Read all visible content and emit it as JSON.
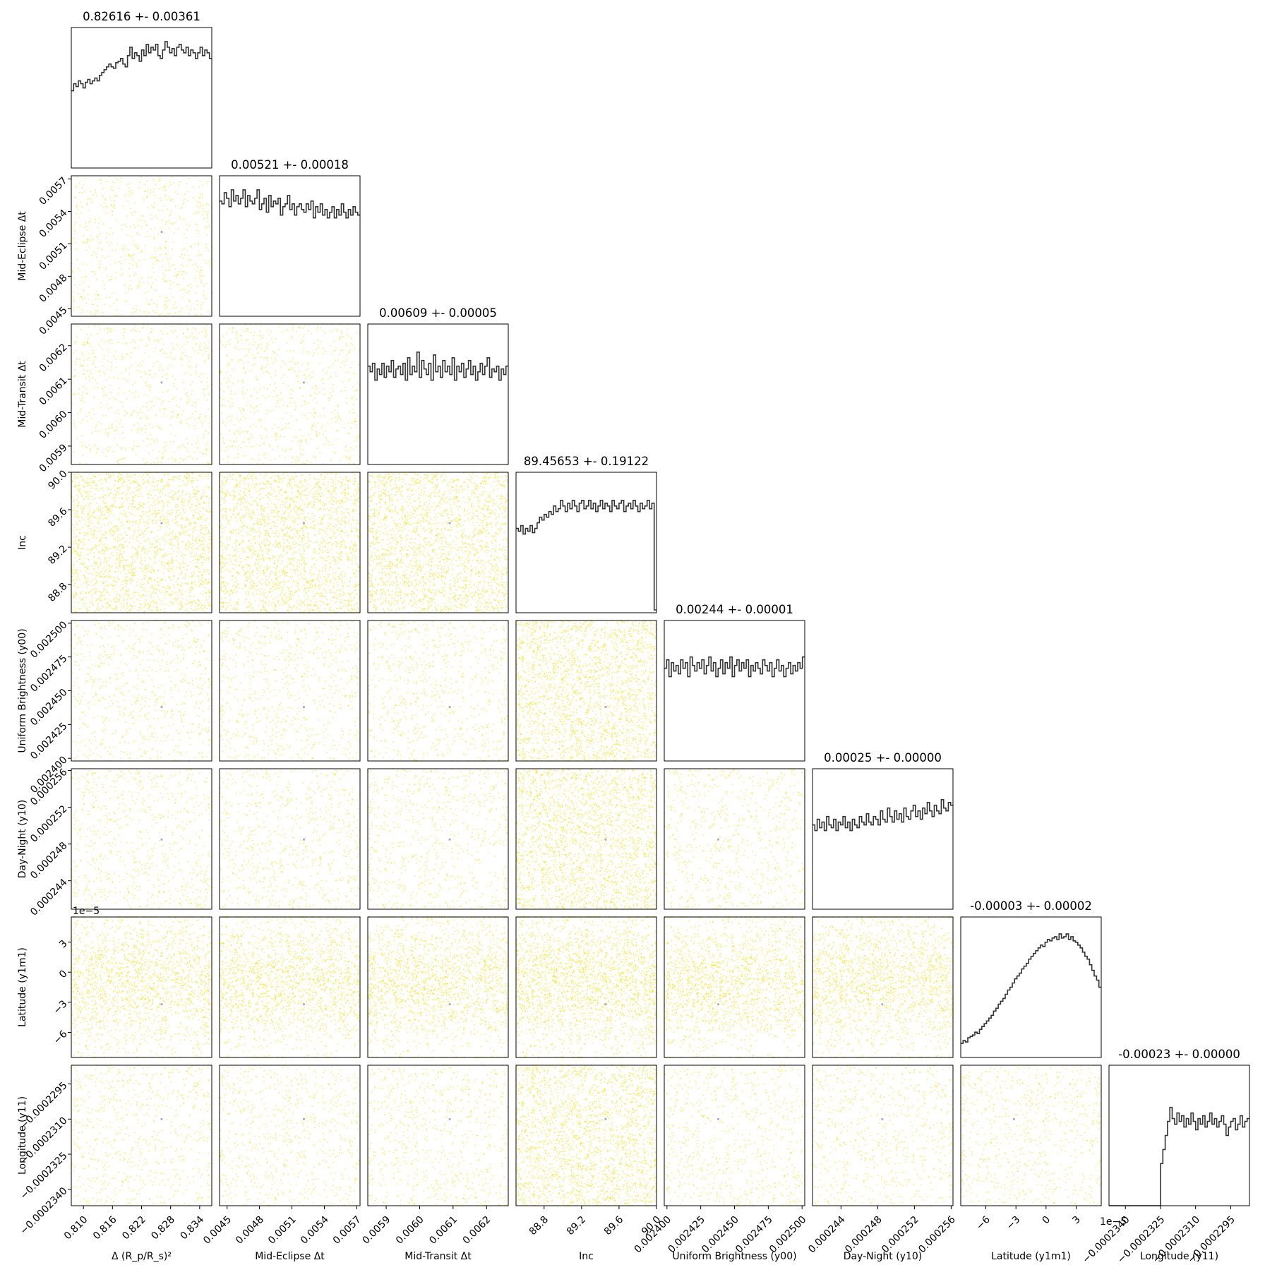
{
  "chart_data": {
    "type": "corner",
    "colors": {
      "scatter": "#f2e127",
      "median_marker": "#a9a9c8",
      "histogram": "#333333",
      "frame": "#000000"
    },
    "parameters": [
      {
        "label": "Δ (R_p/R_s)²",
        "range": [
          0.8075,
          0.8365
        ],
        "ticks": [
          "0.810",
          "0.816",
          "0.822",
          "0.828",
          "0.834"
        ],
        "tick_values": [
          0.81,
          0.816,
          0.822,
          0.828,
          0.834
        ],
        "offset_text": ""
      },
      {
        "label": "Mid-Eclipse Δt",
        "range": [
          0.00443,
          0.00573
        ],
        "ticks": [
          "0.0045",
          "0.0048",
          "0.0051",
          "0.0054",
          "0.0057"
        ],
        "tick_values": [
          0.0045,
          0.0048,
          0.0051,
          0.0054,
          0.0057
        ],
        "offset_text": ""
      },
      {
        "label": "Mid-Transit Δt",
        "range": [
          0.005845,
          0.006265
        ],
        "ticks": [
          "0.0059",
          "0.0060",
          "0.0061",
          "0.0062"
        ],
        "tick_values": [
          0.0059,
          0.006,
          0.0061,
          0.0062
        ],
        "offset_text": ""
      },
      {
        "label": "Inc",
        "range": [
          88.5,
          90.0
        ],
        "ticks": [
          "88.8",
          "89.2",
          "89.6",
          "90.0"
        ],
        "tick_values": [
          88.8,
          89.2,
          89.6,
          90.0
        ],
        "offset_text": ""
      },
      {
        "label": "Uniform Brightness (y00)",
        "range": [
          0.002398,
          0.002502
        ],
        "ticks": [
          "0.002400",
          "0.002425",
          "0.002450",
          "0.002475",
          "0.002500"
        ],
        "tick_values": [
          0.0024,
          0.002425,
          0.00245,
          0.002475,
          0.0025
        ],
        "offset_text": ""
      },
      {
        "label": "Day-Night (y10)",
        "range": [
          0.0002409,
          0.0002562
        ],
        "ticks": [
          "0.000244",
          "0.000248",
          "0.000252",
          "0.000256"
        ],
        "tick_values": [
          0.000244,
          0.000248,
          0.000252,
          0.000256
        ],
        "offset_text": ""
      },
      {
        "label": "Latitude (y1m1)",
        "range": [
          -8.5,
          5.5
        ],
        "ticks": [
          "−6",
          "−3",
          "0",
          "3"
        ],
        "tick_values": [
          -6,
          -3,
          0,
          3
        ],
        "offset_text": "1e−5"
      },
      {
        "label": "Longitude (y11)",
        "range": [
          -0.0002347,
          -0.0002287
        ],
        "ticks": [
          "−0.0002340",
          "−0.0002325",
          "−0.0002310",
          "−0.0002295"
        ],
        "tick_values": [
          -0.000234,
          -0.0002325,
          -0.000231,
          -0.0002295
        ],
        "offset_text": ""
      }
    ],
    "titles": [
      "0.82616 +- 0.00361",
      "0.00521 +- 0.00018",
      "0.00609 +- 0.00005",
      "89.45653 +- 0.19122",
      "0.00244 +- 0.00001",
      "0.00025 +- 0.00000",
      "-0.00003 +- 0.00002",
      "-0.00023 +- 0.00000"
    ],
    "medians": [
      0.82616,
      0.00521,
      0.00609,
      89.45653,
      0.002438,
      0.0002485,
      -3.2,
      -0.000231
    ],
    "histograms": [
      [
        0.55,
        0.6,
        0.58,
        0.62,
        0.6,
        0.57,
        0.61,
        0.63,
        0.6,
        0.62,
        0.64,
        0.62,
        0.66,
        0.68,
        0.7,
        0.72,
        0.74,
        0.72,
        0.71,
        0.75,
        0.76,
        0.78,
        0.74,
        0.72,
        0.8,
        0.86,
        0.78,
        0.82,
        0.8,
        0.76,
        0.84,
        0.8,
        0.88,
        0.82,
        0.86,
        0.84,
        0.88,
        0.8,
        0.78,
        0.84,
        0.9,
        0.86,
        0.82,
        0.85,
        0.8,
        0.86,
        0.88,
        0.84,
        0.82,
        0.86,
        0.8,
        0.84,
        0.82,
        0.78,
        0.82,
        0.86,
        0.8,
        0.84,
        0.82,
        0.78
      ],
      [
        0.82,
        0.8,
        0.88,
        0.84,
        0.78,
        0.9,
        0.82,
        0.86,
        0.8,
        0.84,
        0.9,
        0.78,
        0.86,
        0.82,
        0.8,
        0.84,
        0.9,
        0.76,
        0.8,
        0.84,
        0.74,
        0.86,
        0.78,
        0.82,
        0.8,
        0.84,
        0.72,
        0.78,
        0.8,
        0.86,
        0.76,
        0.8,
        0.72,
        0.78,
        0.8,
        0.76,
        0.74,
        0.8,
        0.76,
        0.82,
        0.7,
        0.78,
        0.74,
        0.8,
        0.72,
        0.76,
        0.7,
        0.74,
        0.78,
        0.7,
        0.76,
        0.72,
        0.8,
        0.74,
        0.7,
        0.76,
        0.72,
        0.78,
        0.74,
        0.72
      ],
      [
        0.7,
        0.66,
        0.72,
        0.6,
        0.68,
        0.64,
        0.72,
        0.62,
        0.7,
        0.66,
        0.74,
        0.62,
        0.68,
        0.7,
        0.64,
        0.72,
        0.6,
        0.76,
        0.64,
        0.7,
        0.66,
        0.8,
        0.62,
        0.74,
        0.68,
        0.64,
        0.72,
        0.6,
        0.78,
        0.66,
        0.7,
        0.62,
        0.74,
        0.66,
        0.7,
        0.64,
        0.76,
        0.6,
        0.7,
        0.66,
        0.72,
        0.62,
        0.68,
        0.74,
        0.64,
        0.7,
        0.6,
        0.66,
        0.72,
        0.64,
        0.7,
        0.76,
        0.62,
        0.68,
        0.66,
        0.7,
        0.6,
        0.68,
        0.64,
        0.7
      ],
      [
        0.6,
        0.58,
        0.62,
        0.56,
        0.6,
        0.58,
        0.62,
        0.57,
        0.6,
        0.64,
        0.68,
        0.66,
        0.7,
        0.68,
        0.72,
        0.7,
        0.76,
        0.72,
        0.74,
        0.8,
        0.76,
        0.72,
        0.78,
        0.74,
        0.8,
        0.76,
        0.72,
        0.78,
        0.8,
        0.74,
        0.76,
        0.8,
        0.74,
        0.78,
        0.72,
        0.76,
        0.8,
        0.74,
        0.78,
        0.76,
        0.72,
        0.8,
        0.76,
        0.74,
        0.78,
        0.8,
        0.72,
        0.76,
        0.78,
        0.74,
        0.8,
        0.76,
        0.72,
        0.78,
        0.74,
        0.76,
        0.8,
        0.74,
        0.78,
        0.02
      ],
      [
        0.66,
        0.72,
        0.6,
        0.7,
        0.64,
        0.68,
        0.62,
        0.72,
        0.66,
        0.7,
        0.6,
        0.74,
        0.68,
        0.64,
        0.7,
        0.66,
        0.72,
        0.62,
        0.68,
        0.74,
        0.64,
        0.7,
        0.6,
        0.66,
        0.72,
        0.62,
        0.7,
        0.66,
        0.74,
        0.6,
        0.68,
        0.72,
        0.64,
        0.7,
        0.66,
        0.72,
        0.6,
        0.68,
        0.64,
        0.7,
        0.66,
        0.62,
        0.72,
        0.68,
        0.64,
        0.7,
        0.6,
        0.66,
        0.72,
        0.64,
        0.68,
        0.6,
        0.66,
        0.7,
        0.62,
        0.68,
        0.64,
        0.7,
        0.66,
        0.74
      ],
      [
        0.6,
        0.56,
        0.64,
        0.58,
        0.62,
        0.56,
        0.66,
        0.6,
        0.58,
        0.64,
        0.56,
        0.62,
        0.6,
        0.66,
        0.58,
        0.62,
        0.56,
        0.64,
        0.6,
        0.58,
        0.66,
        0.62,
        0.6,
        0.68,
        0.62,
        0.6,
        0.66,
        0.64,
        0.6,
        0.7,
        0.64,
        0.62,
        0.72,
        0.66,
        0.62,
        0.7,
        0.64,
        0.68,
        0.62,
        0.72,
        0.66,
        0.64,
        0.7,
        0.74,
        0.66,
        0.7,
        0.64,
        0.72,
        0.68,
        0.76,
        0.7,
        0.66,
        0.74,
        0.7,
        0.68,
        0.78,
        0.72,
        0.7,
        0.76,
        0.74
      ],
      [
        0.1,
        0.12,
        0.11,
        0.14,
        0.15,
        0.16,
        0.18,
        0.17,
        0.2,
        0.22,
        0.24,
        0.26,
        0.28,
        0.3,
        0.33,
        0.35,
        0.38,
        0.4,
        0.42,
        0.45,
        0.48,
        0.5,
        0.53,
        0.56,
        0.58,
        0.6,
        0.63,
        0.65,
        0.67,
        0.7,
        0.72,
        0.74,
        0.76,
        0.78,
        0.8,
        0.79,
        0.82,
        0.84,
        0.83,
        0.85,
        0.86,
        0.84,
        0.88,
        0.85,
        0.86,
        0.88,
        0.84,
        0.86,
        0.83,
        0.82,
        0.8,
        0.78,
        0.75,
        0.72,
        0.7,
        0.66,
        0.62,
        0.58,
        0.55,
        0.5
      ],
      [
        0.0,
        0.0,
        0.0,
        0.0,
        0.0,
        0.0,
        0.0,
        0.0,
        0.0,
        0.0,
        0.0,
        0.0,
        0.0,
        0.0,
        0.0,
        0.0,
        0.0,
        0.0,
        0.0,
        0.0,
        0.0,
        0.0,
        0.3,
        0.4,
        0.5,
        0.6,
        0.7,
        0.62,
        0.58,
        0.66,
        0.6,
        0.64,
        0.56,
        0.62,
        0.58,
        0.66,
        0.6,
        0.54,
        0.62,
        0.58,
        0.64,
        0.56,
        0.6,
        0.66,
        0.58,
        0.62,
        0.56,
        0.6,
        0.64,
        0.58,
        0.5,
        0.56,
        0.6,
        0.62,
        0.54,
        0.58,
        0.64,
        0.56,
        0.6,
        0.62
      ]
    ]
  }
}
